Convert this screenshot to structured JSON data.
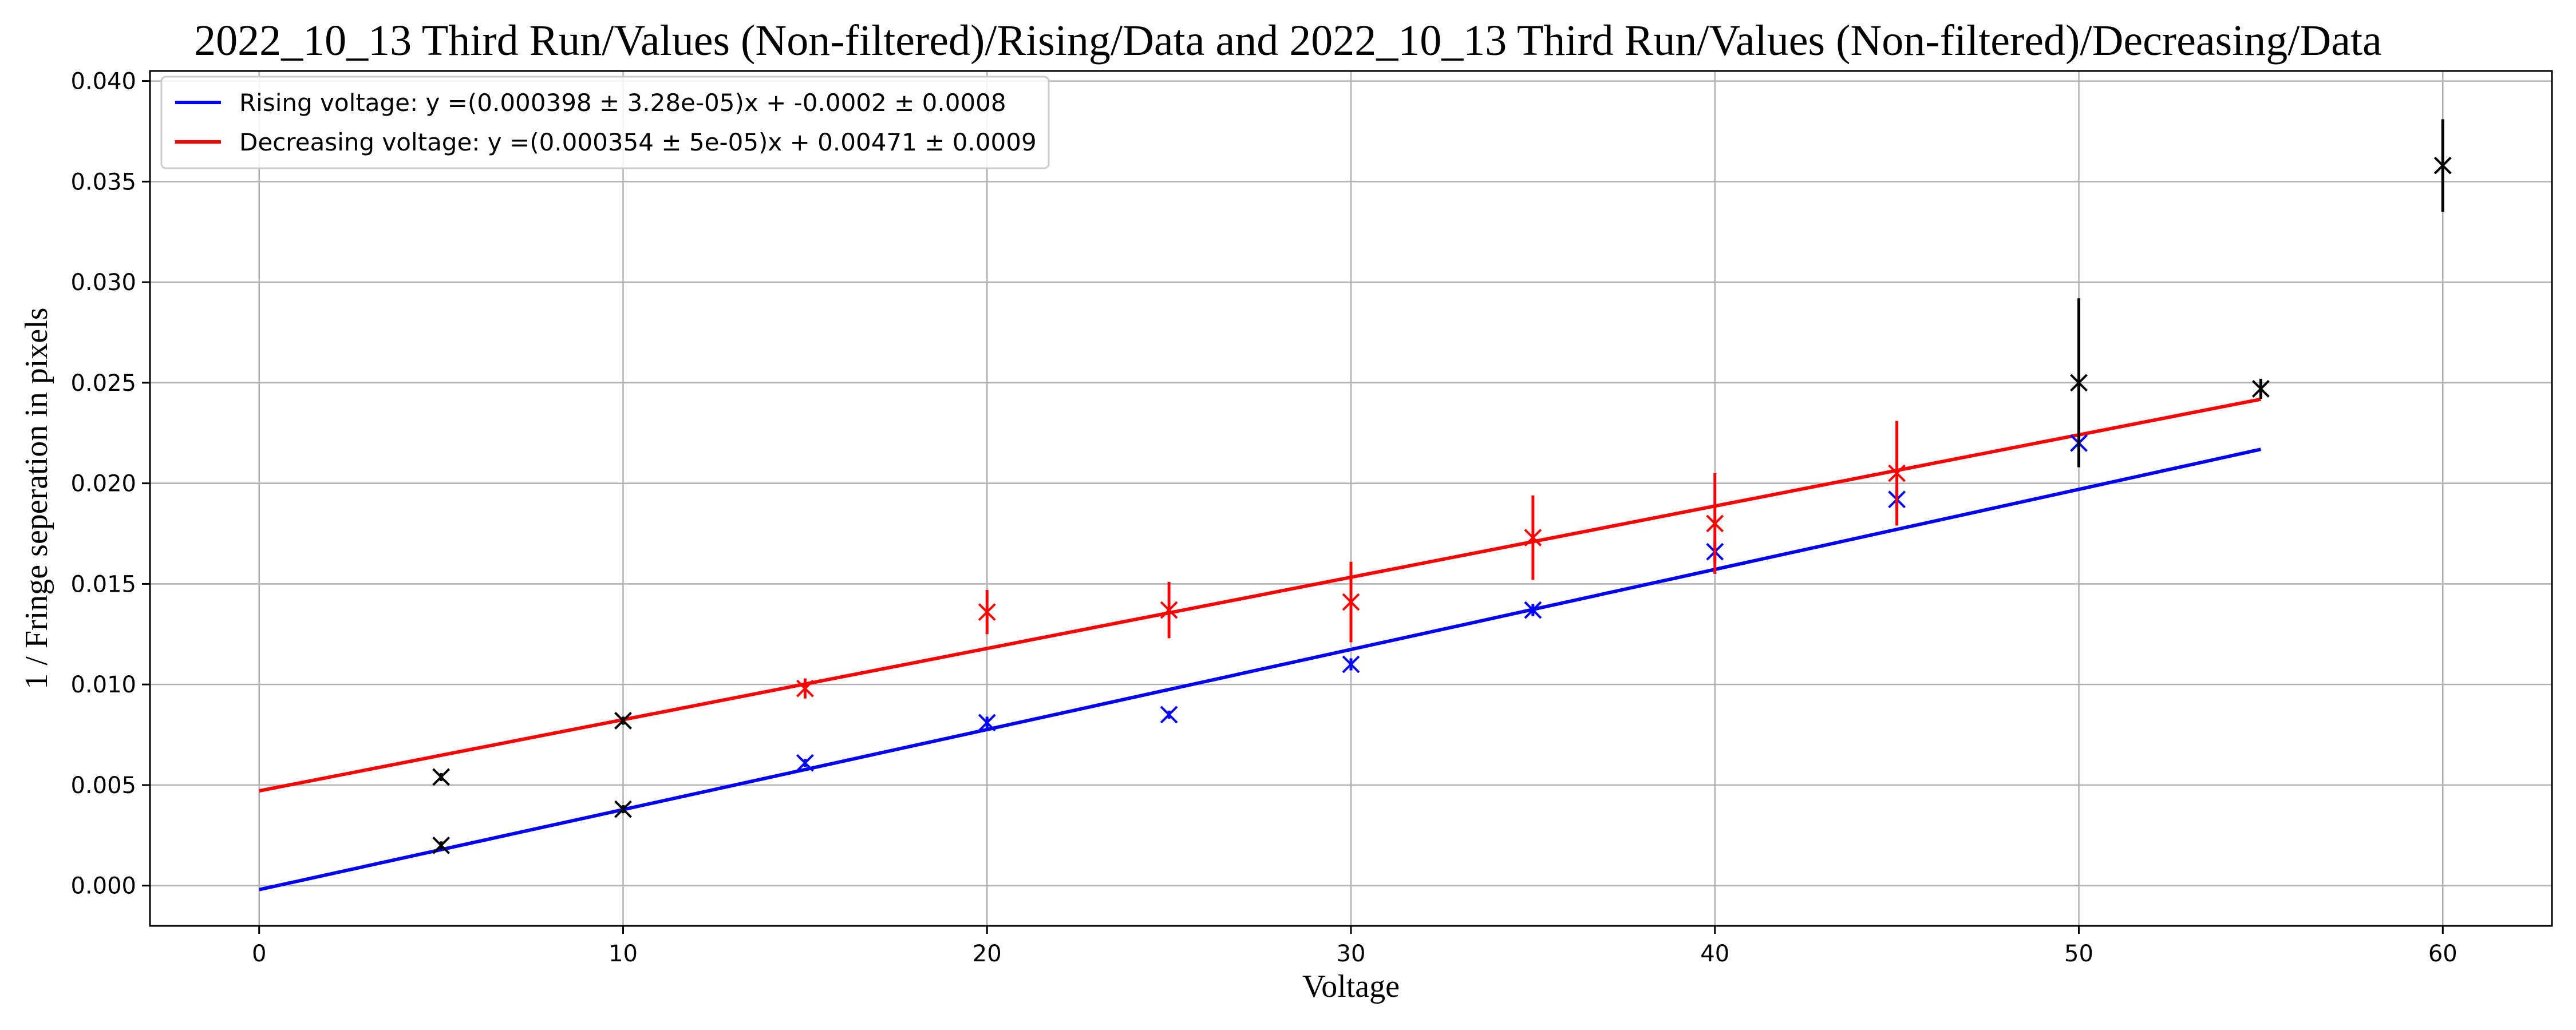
{
  "chart_data": {
    "type": "scatter",
    "title": "2022_10_13 Third Run/Values (Non-filtered)/Rising/Data and 2022_10_13 Third Run/Values (Non-filtered)/Decreasing/Data",
    "xlabel": "Voltage",
    "ylabel": "1 / Fringe seperation in pixels",
    "xlim": [
      -3,
      63
    ],
    "ylim": [
      -0.002,
      0.0405
    ],
    "xticks": [
      0,
      10,
      20,
      30,
      40,
      50,
      60
    ],
    "xtick_labels": [
      "0",
      "10",
      "20",
      "30",
      "40",
      "50",
      "60"
    ],
    "yticks": [
      0.0,
      0.005,
      0.01,
      0.015,
      0.02,
      0.025,
      0.03,
      0.035,
      0.04
    ],
    "ytick_labels": [
      "0.000",
      "0.005",
      "0.010",
      "0.015",
      "0.020",
      "0.025",
      "0.030",
      "0.035",
      "0.040"
    ],
    "grid": true,
    "legend_position": "top-left",
    "fits": [
      {
        "name": "Rising voltage: y =(0.000398 ± 3.28e-05)x + -0.0002 ± 0.0008",
        "color": "#0000ff",
        "slope": 0.000398,
        "intercept": -0.0002,
        "x_range": [
          0,
          55
        ]
      },
      {
        "name": "Decreasing voltage: y =(0.000354 ± 5e-05)x + 0.00471 ± 0.0009",
        "color": "#ff0000",
        "slope": 0.000354,
        "intercept": 0.00471,
        "x_range": [
          0,
          55
        ]
      }
    ],
    "series": [
      {
        "color": "#0000ff",
        "marker": "x",
        "points": [
          {
            "x": 15,
            "y": 0.0061,
            "yerr": 0.0002
          },
          {
            "x": 20,
            "y": 0.0081,
            "yerr": 0.0003
          },
          {
            "x": 25,
            "y": 0.0085,
            "yerr": 0.0002
          },
          {
            "x": 30,
            "y": 0.011,
            "yerr": 0.0003
          },
          {
            "x": 35,
            "y": 0.0137,
            "yerr": 0.0003
          },
          {
            "x": 40,
            "y": 0.0166,
            "yerr": 0.0005
          },
          {
            "x": 45,
            "y": 0.0192,
            "yerr": 0.0005
          },
          {
            "x": 50,
            "y": 0.022,
            "yerr": 0.0006
          }
        ]
      },
      {
        "color": "#ff0000",
        "marker": "x",
        "points": [
          {
            "x": 15,
            "y": 0.0098,
            "yerr": 0.0005
          },
          {
            "x": 20,
            "y": 0.0136,
            "yerr": 0.0011
          },
          {
            "x": 25,
            "y": 0.0137,
            "yerr": 0.0014
          },
          {
            "x": 30,
            "y": 0.0141,
            "yerr": 0.002
          },
          {
            "x": 35,
            "y": 0.0173,
            "yerr": 0.0021
          },
          {
            "x": 40,
            "y": 0.018,
            "yerr": 0.0025
          },
          {
            "x": 45,
            "y": 0.0205,
            "yerr": 0.0026
          }
        ]
      },
      {
        "color": "#000000",
        "marker": "x",
        "points": [
          {
            "x": 5,
            "y": 0.002,
            "yerr": 0.0002
          },
          {
            "x": 5,
            "y": 0.0054,
            "yerr": 0.0002
          },
          {
            "x": 10,
            "y": 0.0038,
            "yerr": 0.0002
          },
          {
            "x": 10,
            "y": 0.0082,
            "yerr": 0.0002
          },
          {
            "x": 50,
            "y": 0.025,
            "yerr": 0.0042
          },
          {
            "x": 55,
            "y": 0.0247,
            "yerr": 0.0005
          },
          {
            "x": 60,
            "y": 0.0358,
            "yerr": 0.0023
          }
        ]
      }
    ]
  }
}
